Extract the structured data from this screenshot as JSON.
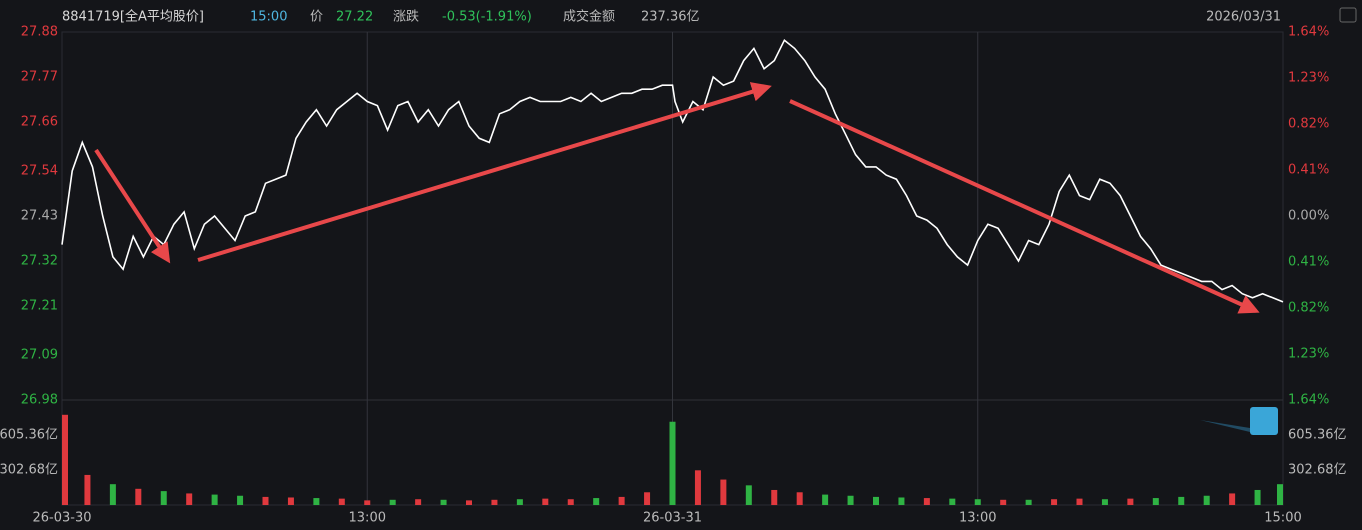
{
  "header": {
    "code": "8841719[全A平均股价]",
    "time": "15:00",
    "price_label": "价",
    "price": "27.22",
    "change_label": "涨跌",
    "change": "-0.53(-1.91%)",
    "amount_label": "成交金额",
    "amount": "237.36亿",
    "date": "2026/03/31"
  },
  "chart_data": [
    {
      "type": "line",
      "color": "#ffffff",
      "x": [
        0,
        4,
        8,
        12,
        16,
        20,
        24,
        28,
        32,
        36,
        40,
        44,
        48,
        52,
        56,
        60,
        64,
        68,
        72,
        76,
        80,
        84,
        88,
        92,
        96,
        100,
        104,
        108,
        112,
        116,
        120,
        124,
        128,
        132,
        136,
        140,
        144,
        148,
        152,
        156,
        160,
        164,
        168,
        172,
        176,
        180,
        184,
        188,
        192,
        196,
        200,
        204,
        208,
        212,
        216,
        220,
        224,
        228,
        232,
        236,
        240,
        241,
        244,
        248,
        252,
        256,
        260,
        264,
        268,
        272,
        276,
        280,
        284,
        288,
        292,
        296,
        300,
        304,
        308,
        312,
        316,
        320,
        324,
        328,
        332,
        336,
        340,
        344,
        348,
        352,
        356,
        360,
        364,
        368,
        372,
        376,
        380,
        384,
        388,
        392,
        396,
        400,
        404,
        408,
        412,
        416,
        420,
        424,
        428,
        432,
        436,
        440,
        444,
        448,
        452,
        456,
        460,
        464,
        468,
        472,
        476,
        480
      ],
      "values": [
        27.36,
        27.54,
        27.61,
        27.55,
        27.43,
        27.33,
        27.3,
        27.38,
        27.33,
        27.38,
        27.36,
        27.41,
        27.44,
        27.35,
        27.41,
        27.43,
        27.4,
        27.37,
        27.43,
        27.44,
        27.51,
        27.52,
        27.53,
        27.62,
        27.66,
        27.69,
        27.65,
        27.69,
        27.71,
        27.73,
        27.71,
        27.7,
        27.64,
        27.7,
        27.71,
        27.66,
        27.69,
        27.65,
        27.69,
        27.71,
        27.65,
        27.62,
        27.61,
        27.68,
        27.69,
        27.71,
        27.72,
        27.71,
        27.71,
        27.71,
        27.72,
        27.71,
        27.73,
        27.71,
        27.72,
        27.73,
        27.73,
        27.74,
        27.74,
        27.75,
        27.75,
        27.71,
        27.66,
        27.71,
        27.69,
        27.77,
        27.75,
        27.76,
        27.81,
        27.84,
        27.79,
        27.81,
        27.86,
        27.84,
        27.81,
        27.77,
        27.74,
        27.68,
        27.63,
        27.58,
        27.55,
        27.55,
        27.53,
        27.52,
        27.48,
        27.43,
        27.42,
        27.4,
        27.36,
        27.33,
        27.31,
        27.37,
        27.41,
        27.4,
        27.36,
        27.32,
        27.37,
        27.36,
        27.41,
        27.49,
        27.53,
        27.48,
        27.47,
        27.52,
        27.51,
        27.48,
        27.43,
        27.38,
        27.35,
        27.31,
        27.3,
        27.29,
        27.28,
        27.27,
        27.27,
        27.25,
        27.26,
        27.24,
        27.23,
        27.24,
        27.23,
        27.22
      ],
      "xlim": [
        0,
        480
      ],
      "xticks": [
        {
          "value": 0,
          "label": "26-03-30"
        },
        {
          "value": 120,
          "label": "13:00"
        },
        {
          "value": 240,
          "label": "26-03-31"
        },
        {
          "value": 360,
          "label": "13:00"
        },
        {
          "value": 480,
          "label": "15:00"
        }
      ],
      "grid": true,
      "ylim": [
        26.98,
        27.88
      ],
      "yticks": [
        27.88,
        27.77,
        27.66,
        27.54,
        27.43,
        27.32,
        27.21,
        27.09,
        26.98
      ],
      "y2lim": [
        -1.64,
        1.64
      ],
      "y2ticks": [
        {
          "value": 1.64,
          "label": "1.64%"
        },
        {
          "value": 1.23,
          "label": "1.23%"
        },
        {
          "value": 0.82,
          "label": "0.82%"
        },
        {
          "value": 0.41,
          "label": "0.41%"
        },
        {
          "value": 0,
          "label": "0.00%"
        },
        {
          "value": -0.41,
          "label": "0.41%"
        },
        {
          "value": -0.82,
          "label": "0.82%"
        },
        {
          "value": -1.23,
          "label": "1.23%"
        },
        {
          "value": -1.64,
          "label": "1.64%"
        }
      ]
    },
    {
      "type": "bar",
      "x": [
        0,
        10,
        20,
        30,
        40,
        50,
        60,
        70,
        80,
        90,
        100,
        110,
        120,
        130,
        140,
        150,
        160,
        170,
        180,
        190,
        200,
        210,
        220,
        230,
        240,
        250,
        260,
        270,
        280,
        290,
        300,
        310,
        320,
        330,
        340,
        350,
        360,
        370,
        380,
        390,
        400,
        410,
        420,
        430,
        440,
        450,
        460,
        470,
        480
      ],
      "values": [
        780,
        260,
        180,
        140,
        120,
        100,
        90,
        80,
        70,
        65,
        60,
        55,
        40,
        45,
        50,
        45,
        40,
        45,
        50,
        55,
        50,
        60,
        70,
        110,
        720,
        300,
        220,
        170,
        130,
        110,
        90,
        80,
        70,
        65,
        60,
        55,
        50,
        45,
        45,
        50,
        55,
        50,
        55,
        60,
        70,
        80,
        100,
        130,
        180
      ],
      "colors": [
        "#e0393e",
        "#e0393e",
        "#2fb344",
        "#e0393e",
        "#2fb344",
        "#e0393e",
        "#2fb344",
        "#2fb344",
        "#e0393e",
        "#e0393e",
        "#2fb344",
        "#e0393e",
        "#e0393e",
        "#2fb344",
        "#e0393e",
        "#2fb344",
        "#e0393e",
        "#e0393e",
        "#2fb344",
        "#e0393e",
        "#e0393e",
        "#2fb344",
        "#e0393e",
        "#e0393e",
        "#2fb344",
        "#e0393e",
        "#e0393e",
        "#2fb344",
        "#e0393e",
        "#e0393e",
        "#2fb344",
        "#2fb344",
        "#2fb344",
        "#2fb344",
        "#e0393e",
        "#2fb344",
        "#2fb344",
        "#e0393e",
        "#2fb344",
        "#e0393e",
        "#e0393e",
        "#2fb344",
        "#e0393e",
        "#2fb344",
        "#2fb344",
        "#2fb344",
        "#e0393e",
        "#2fb344",
        "#2fb344"
      ],
      "xlim": [
        0,
        480
      ],
      "ylim": [
        0,
        908
      ],
      "yticks": [
        {
          "value": 605.36,
          "label": "605.36亿"
        },
        {
          "value": 302.68,
          "label": "302.68亿"
        }
      ]
    }
  ]
}
